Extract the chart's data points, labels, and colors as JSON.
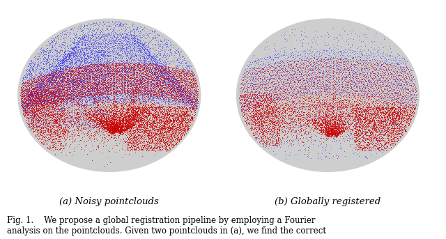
{
  "fig_width": 6.4,
  "fig_height": 3.43,
  "bg_color": "#ffffff",
  "ellipse_color": "#cecece",
  "subtitle_a": "(a) Noisy pointclouds",
  "subtitle_b": "(b) Globally registered",
  "caption": "Fig. 1.    We propose a global registration pipeline by employing a Fourier\nanalysis on the pointclouds. Given two pointclouds in (a), we find the correct",
  "caption_fontsize": 8.5,
  "subtitle_fontsize": 9.5,
  "blue_color": "#1a1aff",
  "red_color": "#cc0000",
  "pink_color": "#c08080",
  "light_blue_color": "#8888cc",
  "seed": 42
}
